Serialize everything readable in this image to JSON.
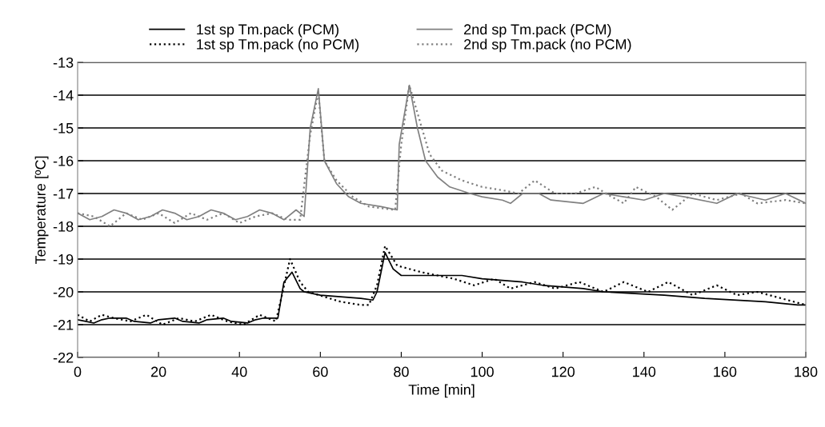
{
  "chart_data": {
    "type": "line",
    "xlabel": "Time [min]",
    "ylabel": "Temperature [ºC]",
    "xlim": [
      0,
      180
    ],
    "xticks": [
      0,
      20,
      40,
      60,
      80,
      100,
      120,
      140,
      160,
      180
    ],
    "ylim": [
      -22,
      -13
    ],
    "yticks": [
      -22,
      -21,
      -20,
      -19,
      -18,
      -17,
      -16,
      -15,
      -14,
      -13
    ],
    "grid": "y",
    "legend": "top",
    "marker": "none",
    "series": [
      {
        "name": "1st sp Tm.pack (PCM)",
        "color": "#000000",
        "line_style": "solid",
        "x": [
          0,
          2,
          4,
          6,
          8,
          12,
          14,
          18,
          20,
          24,
          26,
          30,
          32,
          36,
          38,
          42,
          44,
          46,
          48,
          49.5,
          51,
          53,
          55,
          56,
          60,
          70,
          73,
          74,
          76,
          78,
          80,
          95,
          100,
          110,
          115,
          125,
          130,
          145,
          155,
          170,
          178,
          180
        ],
        "values": [
          -20.85,
          -20.9,
          -20.95,
          -20.85,
          -20.8,
          -20.8,
          -20.9,
          -20.95,
          -20.85,
          -20.8,
          -20.9,
          -20.95,
          -20.85,
          -20.8,
          -20.9,
          -20.95,
          -20.85,
          -20.8,
          -20.8,
          -20.8,
          -19.7,
          -19.4,
          -19.9,
          -20.0,
          -20.1,
          -20.2,
          -20.25,
          -20.0,
          -18.8,
          -19.3,
          -19.5,
          -19.5,
          -19.6,
          -19.7,
          -19.8,
          -19.9,
          -20.0,
          -20.1,
          -20.2,
          -20.3,
          -20.4,
          -20.4
        ]
      },
      {
        "name": "1st sp Tm.pack (no PCM)",
        "color": "#000000",
        "line_style": "dotted",
        "x": [
          0,
          3,
          6,
          9,
          13,
          17,
          21,
          25,
          29,
          33,
          37,
          41,
          45,
          49,
          50.5,
          52.5,
          55,
          57,
          65,
          70,
          72,
          74,
          76,
          79,
          85,
          93,
          98,
          103,
          107,
          113,
          118,
          124,
          130,
          135,
          141,
          146,
          152,
          158,
          163,
          168,
          174,
          177,
          180
        ],
        "values": [
          -20.7,
          -20.9,
          -20.7,
          -20.8,
          -20.9,
          -20.7,
          -21.0,
          -20.8,
          -20.9,
          -20.7,
          -20.9,
          -21.0,
          -20.7,
          -20.9,
          -20.1,
          -19.0,
          -19.7,
          -20.0,
          -20.3,
          -20.4,
          -20.4,
          -19.8,
          -18.6,
          -19.2,
          -19.4,
          -19.6,
          -19.8,
          -19.6,
          -19.9,
          -19.7,
          -19.9,
          -19.7,
          -20.0,
          -19.7,
          -20.0,
          -19.7,
          -20.1,
          -19.8,
          -20.1,
          -20.0,
          -20.2,
          -20.3,
          -20.4
        ]
      },
      {
        "name": "2nd sp Tm.pack (PCM)",
        "color": "#808080",
        "line_style": "solid",
        "x": [
          0,
          3,
          6,
          9,
          12,
          15,
          18,
          21,
          24,
          27,
          30,
          33,
          36,
          39,
          42,
          45,
          48,
          51,
          54,
          56,
          57.5,
          59.5,
          61,
          64,
          67,
          70,
          75,
          79,
          79.5,
          82,
          84,
          86,
          89,
          92,
          97,
          100,
          105,
          107,
          110,
          114,
          117,
          125,
          130,
          135,
          140,
          145,
          150,
          158,
          163,
          170,
          175,
          180
        ],
        "values": [
          -17.6,
          -17.8,
          -17.7,
          -17.5,
          -17.6,
          -17.8,
          -17.7,
          -17.5,
          -17.6,
          -17.8,
          -17.7,
          -17.5,
          -17.6,
          -17.8,
          -17.7,
          -17.5,
          -17.6,
          -17.8,
          -17.5,
          -17.7,
          -15.0,
          -13.8,
          -16.0,
          -16.7,
          -17.1,
          -17.3,
          -17.4,
          -17.5,
          -15.5,
          -13.7,
          -15.0,
          -16.0,
          -16.5,
          -16.8,
          -17.0,
          -17.1,
          -17.2,
          -17.3,
          -17.0,
          -17.0,
          -17.2,
          -17.3,
          -17.0,
          -17.1,
          -17.2,
          -17.0,
          -17.1,
          -17.3,
          -17.0,
          -17.2,
          -17.0,
          -17.3
        ]
      },
      {
        "name": "2nd sp Tm.pack (no PCM)",
        "color": "#808080",
        "line_style": "dotted",
        "x": [
          0,
          4,
          8,
          12,
          16,
          20,
          24,
          28,
          32,
          36,
          40,
          44,
          48,
          52,
          55,
          57.5,
          59.5,
          61,
          64,
          68,
          72,
          78.5,
          80,
          82,
          87,
          90,
          95,
          100,
          105,
          109,
          113,
          118,
          123,
          128,
          132,
          135,
          138,
          143,
          147,
          152,
          158,
          164,
          168,
          175,
          180
        ],
        "values": [
          -17.6,
          -17.7,
          -18.0,
          -17.6,
          -17.8,
          -17.6,
          -17.9,
          -17.6,
          -17.8,
          -17.6,
          -17.9,
          -17.7,
          -17.6,
          -17.8,
          -17.8,
          -15.2,
          -13.9,
          -16.0,
          -16.6,
          -17.1,
          -17.4,
          -17.5,
          -15.5,
          -13.7,
          -15.8,
          -16.3,
          -16.6,
          -16.8,
          -16.9,
          -17.0,
          -16.6,
          -17.0,
          -17.0,
          -16.8,
          -17.1,
          -17.3,
          -16.8,
          -17.1,
          -17.5,
          -17.0,
          -17.2,
          -17.0,
          -17.3,
          -17.2,
          -17.3
        ]
      }
    ]
  }
}
